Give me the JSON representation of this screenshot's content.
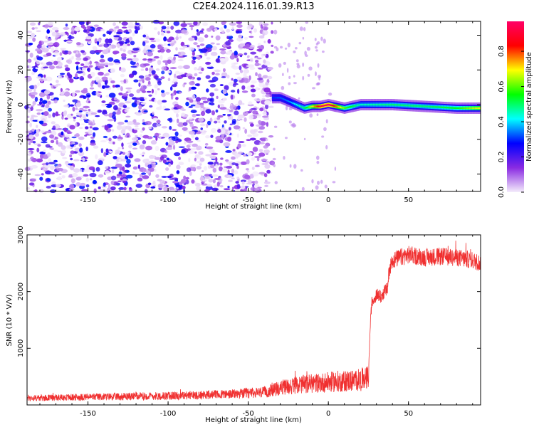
{
  "figure_title": "C2E4.2024.116.01.39.R13",
  "chart_data": [
    {
      "type": "heatmap",
      "title": "C2E4.2024.116.01.39.R13",
      "xlabel": "Height of straight line (km)",
      "ylabel": "Frequency (Hz)",
      "xlim": [
        -188,
        95
      ],
      "ylim": [
        -50,
        48
      ],
      "x_ticks": [
        -150,
        -100,
        -50,
        0,
        50
      ],
      "y_ticks": [
        -40,
        -20,
        0,
        20,
        40
      ],
      "colorbar": {
        "label": "Normalized spectral amplitude",
        "range": [
          0.0,
          0.97
        ],
        "ticks": [
          0.0,
          0.2,
          0.4,
          0.6,
          0.8
        ],
        "colors": [
          "#f4ecfb",
          "#8a2be2",
          "#0000ff",
          "#00ffff",
          "#00ff00",
          "#ffff00",
          "#ff0000",
          "#ff0066"
        ]
      },
      "features": {
        "noise_region_x": [
          -188,
          -35
        ],
        "noise_amplitude": [
          0.0,
          0.3
        ],
        "signal_line_frequency_hz": [
          {
            "x": -35,
            "f": 4
          },
          {
            "x": -30,
            "f": 4
          },
          {
            "x": -25,
            "f": 2
          },
          {
            "x": -20,
            "f": 0
          },
          {
            "x": -15,
            "f": -2
          },
          {
            "x": -10,
            "f": -1
          },
          {
            "x": -5,
            "f": -1
          },
          {
            "x": 0,
            "f": 0
          },
          {
            "x": 5,
            "f": -1
          },
          {
            "x": 10,
            "f": -2
          },
          {
            "x": 20,
            "f": 0
          },
          {
            "x": 40,
            "f": 0
          },
          {
            "x": 60,
            "f": -1
          },
          {
            "x": 80,
            "f": -2
          },
          {
            "x": 95,
            "f": -2
          }
        ],
        "signal_amplitude": [
          {
            "x": -35,
            "a": 0.3
          },
          {
            "x": -25,
            "a": 0.35
          },
          {
            "x": -15,
            "a": 0.5
          },
          {
            "x": -5,
            "a": 0.9
          },
          {
            "x": 0,
            "a": 0.95
          },
          {
            "x": 10,
            "a": 0.6
          },
          {
            "x": 20,
            "a": 0.45
          },
          {
            "x": 40,
            "a": 0.5
          },
          {
            "x": 60,
            "a": 0.5
          },
          {
            "x": 80,
            "a": 0.55
          },
          {
            "x": 95,
            "a": 0.7
          }
        ]
      }
    },
    {
      "type": "line",
      "xlabel": "Height of straight line (km)",
      "ylabel": "SNR (10 * V/V)",
      "xlim": [
        -188,
        95
      ],
      "ylim": [
        0,
        3000
      ],
      "x_ticks": [
        -150,
        -100,
        -50,
        0,
        50
      ],
      "y_ticks": [
        1000,
        2000,
        3000
      ],
      "color": "#f03030",
      "series": [
        {
          "x": [
            -188,
            -150,
            -100,
            -60,
            -40,
            -30,
            -20,
            -10,
            0,
            10,
            20,
            25,
            26,
            27,
            30,
            33,
            35,
            37,
            38,
            40,
            45,
            50,
            60,
            70,
            80,
            90,
            95
          ],
          "y": [
            120,
            140,
            160,
            190,
            220,
            300,
            350,
            380,
            400,
            420,
            440,
            480,
            1300,
            1800,
            1950,
            1900,
            2000,
            2050,
            2400,
            2550,
            2600,
            2650,
            2600,
            2620,
            2600,
            2550,
            2500
          ]
        }
      ]
    }
  ]
}
